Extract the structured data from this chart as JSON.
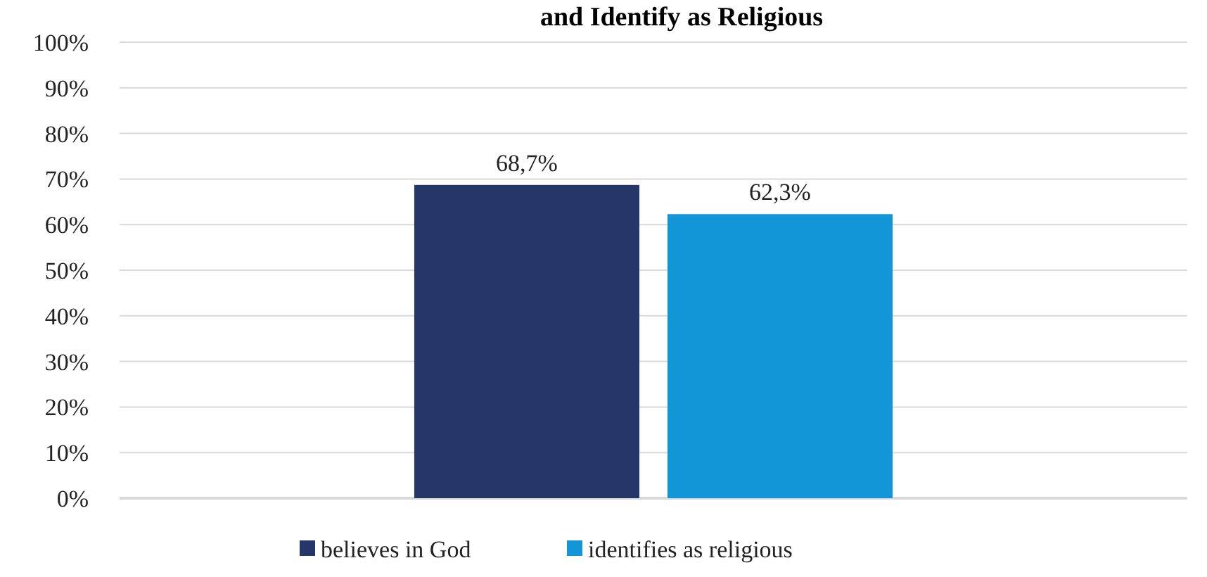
{
  "chart_data": {
    "type": "bar",
    "title": "and Identify as Religious",
    "categories": [
      null
    ],
    "series": [
      {
        "name": "believes in God",
        "color": "#253668",
        "values": [
          68.7
        ],
        "value_labels": [
          "68,7%"
        ]
      },
      {
        "name": "identifies as religious",
        "color": "#1396d8",
        "values": [
          62.3
        ],
        "value_labels": [
          "62,3%"
        ]
      }
    ],
    "ylim": [
      0,
      100
    ],
    "yticks": [
      {
        "value": 0,
        "label": "0%"
      },
      {
        "value": 10,
        "label": "10%"
      },
      {
        "value": 20,
        "label": "20%"
      },
      {
        "value": 30,
        "label": "30%"
      },
      {
        "value": 40,
        "label": "40%"
      },
      {
        "value": 50,
        "label": "50%"
      },
      {
        "value": 60,
        "label": "60%"
      },
      {
        "value": 70,
        "label": "70%"
      },
      {
        "value": 80,
        "label": "80%"
      },
      {
        "value": 90,
        "label": "90%"
      },
      {
        "value": 100,
        "label": "100%"
      }
    ],
    "grid": "y",
    "legend": "bottom"
  }
}
